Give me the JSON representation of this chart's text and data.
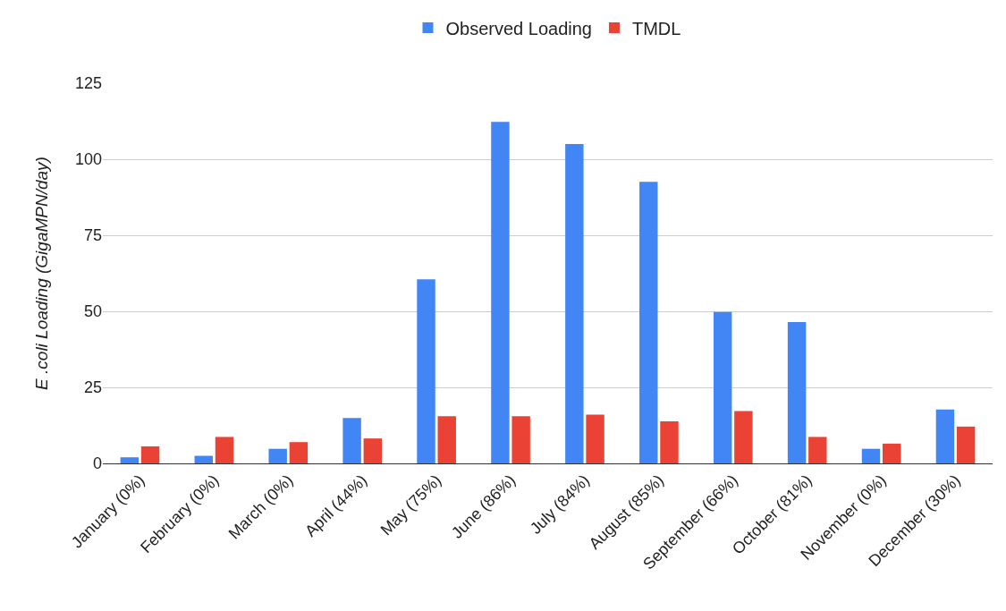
{
  "chart_data": {
    "type": "bar",
    "ylabel": "E .coli Loading (GigaMPN/day)",
    "categories": [
      "January (0%)",
      "February (0%)",
      "March (0%)",
      "April (44%)",
      "May (75%)",
      "June (86%)",
      "July (84%)",
      "August (85%)",
      "September (66%)",
      "October (81%)",
      "November (0%)",
      "December (30%)"
    ],
    "series": [
      {
        "name": "Observed Loading",
        "color": "#4285f4",
        "values": [
          2,
          2.5,
          4.8,
          14.9,
          60.5,
          112.3,
          105,
          92.6,
          49.8,
          46.5,
          4.8,
          17.7
        ]
      },
      {
        "name": "TMDL",
        "color": "#ea4335",
        "values": [
          5.6,
          8.7,
          7,
          8.2,
          15.5,
          15.5,
          16,
          13.8,
          17.2,
          8.7,
          6.5,
          12.1
        ]
      }
    ],
    "ylim": [
      0,
      125
    ],
    "yticks": [
      0,
      25,
      50,
      75,
      100,
      125
    ],
    "grid": "y",
    "legend": "top"
  }
}
